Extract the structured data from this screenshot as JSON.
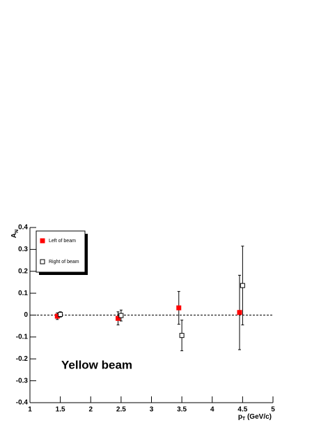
{
  "chart_data": {
    "type": "scatter",
    "y_label": "A",
    "y_label_subscript": "N",
    "x_label": "p",
    "x_label_subscript": "T",
    "x_label_suffix": " (GeV/c)",
    "annotation": "Yellow beam",
    "xlim": [
      1,
      5
    ],
    "xticks": [
      1,
      1.5,
      2,
      2.5,
      3,
      3.5,
      4,
      4.5,
      5
    ],
    "ylim": [
      -0.4,
      0.4
    ],
    "yticks": [
      -0.4,
      -0.3,
      -0.2,
      -0.1,
      0,
      0.1,
      0.2,
      0.3,
      0.4
    ],
    "reference_line": 0,
    "legend": "top-left",
    "series": [
      {
        "name": "Left of beam",
        "color": "#ff0000",
        "filled": true,
        "x": [
          1.45,
          2.45,
          3.45,
          4.45
        ],
        "values": [
          -0.005,
          -0.015,
          0.033,
          0.012
        ],
        "errors": [
          0.015,
          0.03,
          0.075,
          0.17
        ]
      },
      {
        "name": "Right of beam",
        "color": "#000000",
        "filled": false,
        "x": [
          1.5,
          2.5,
          3.5,
          4.5
        ],
        "values": [
          0.003,
          -0.002,
          -0.093,
          0.135
        ],
        "errors": [
          0.012,
          0.025,
          0.07,
          0.18
        ]
      }
    ]
  }
}
